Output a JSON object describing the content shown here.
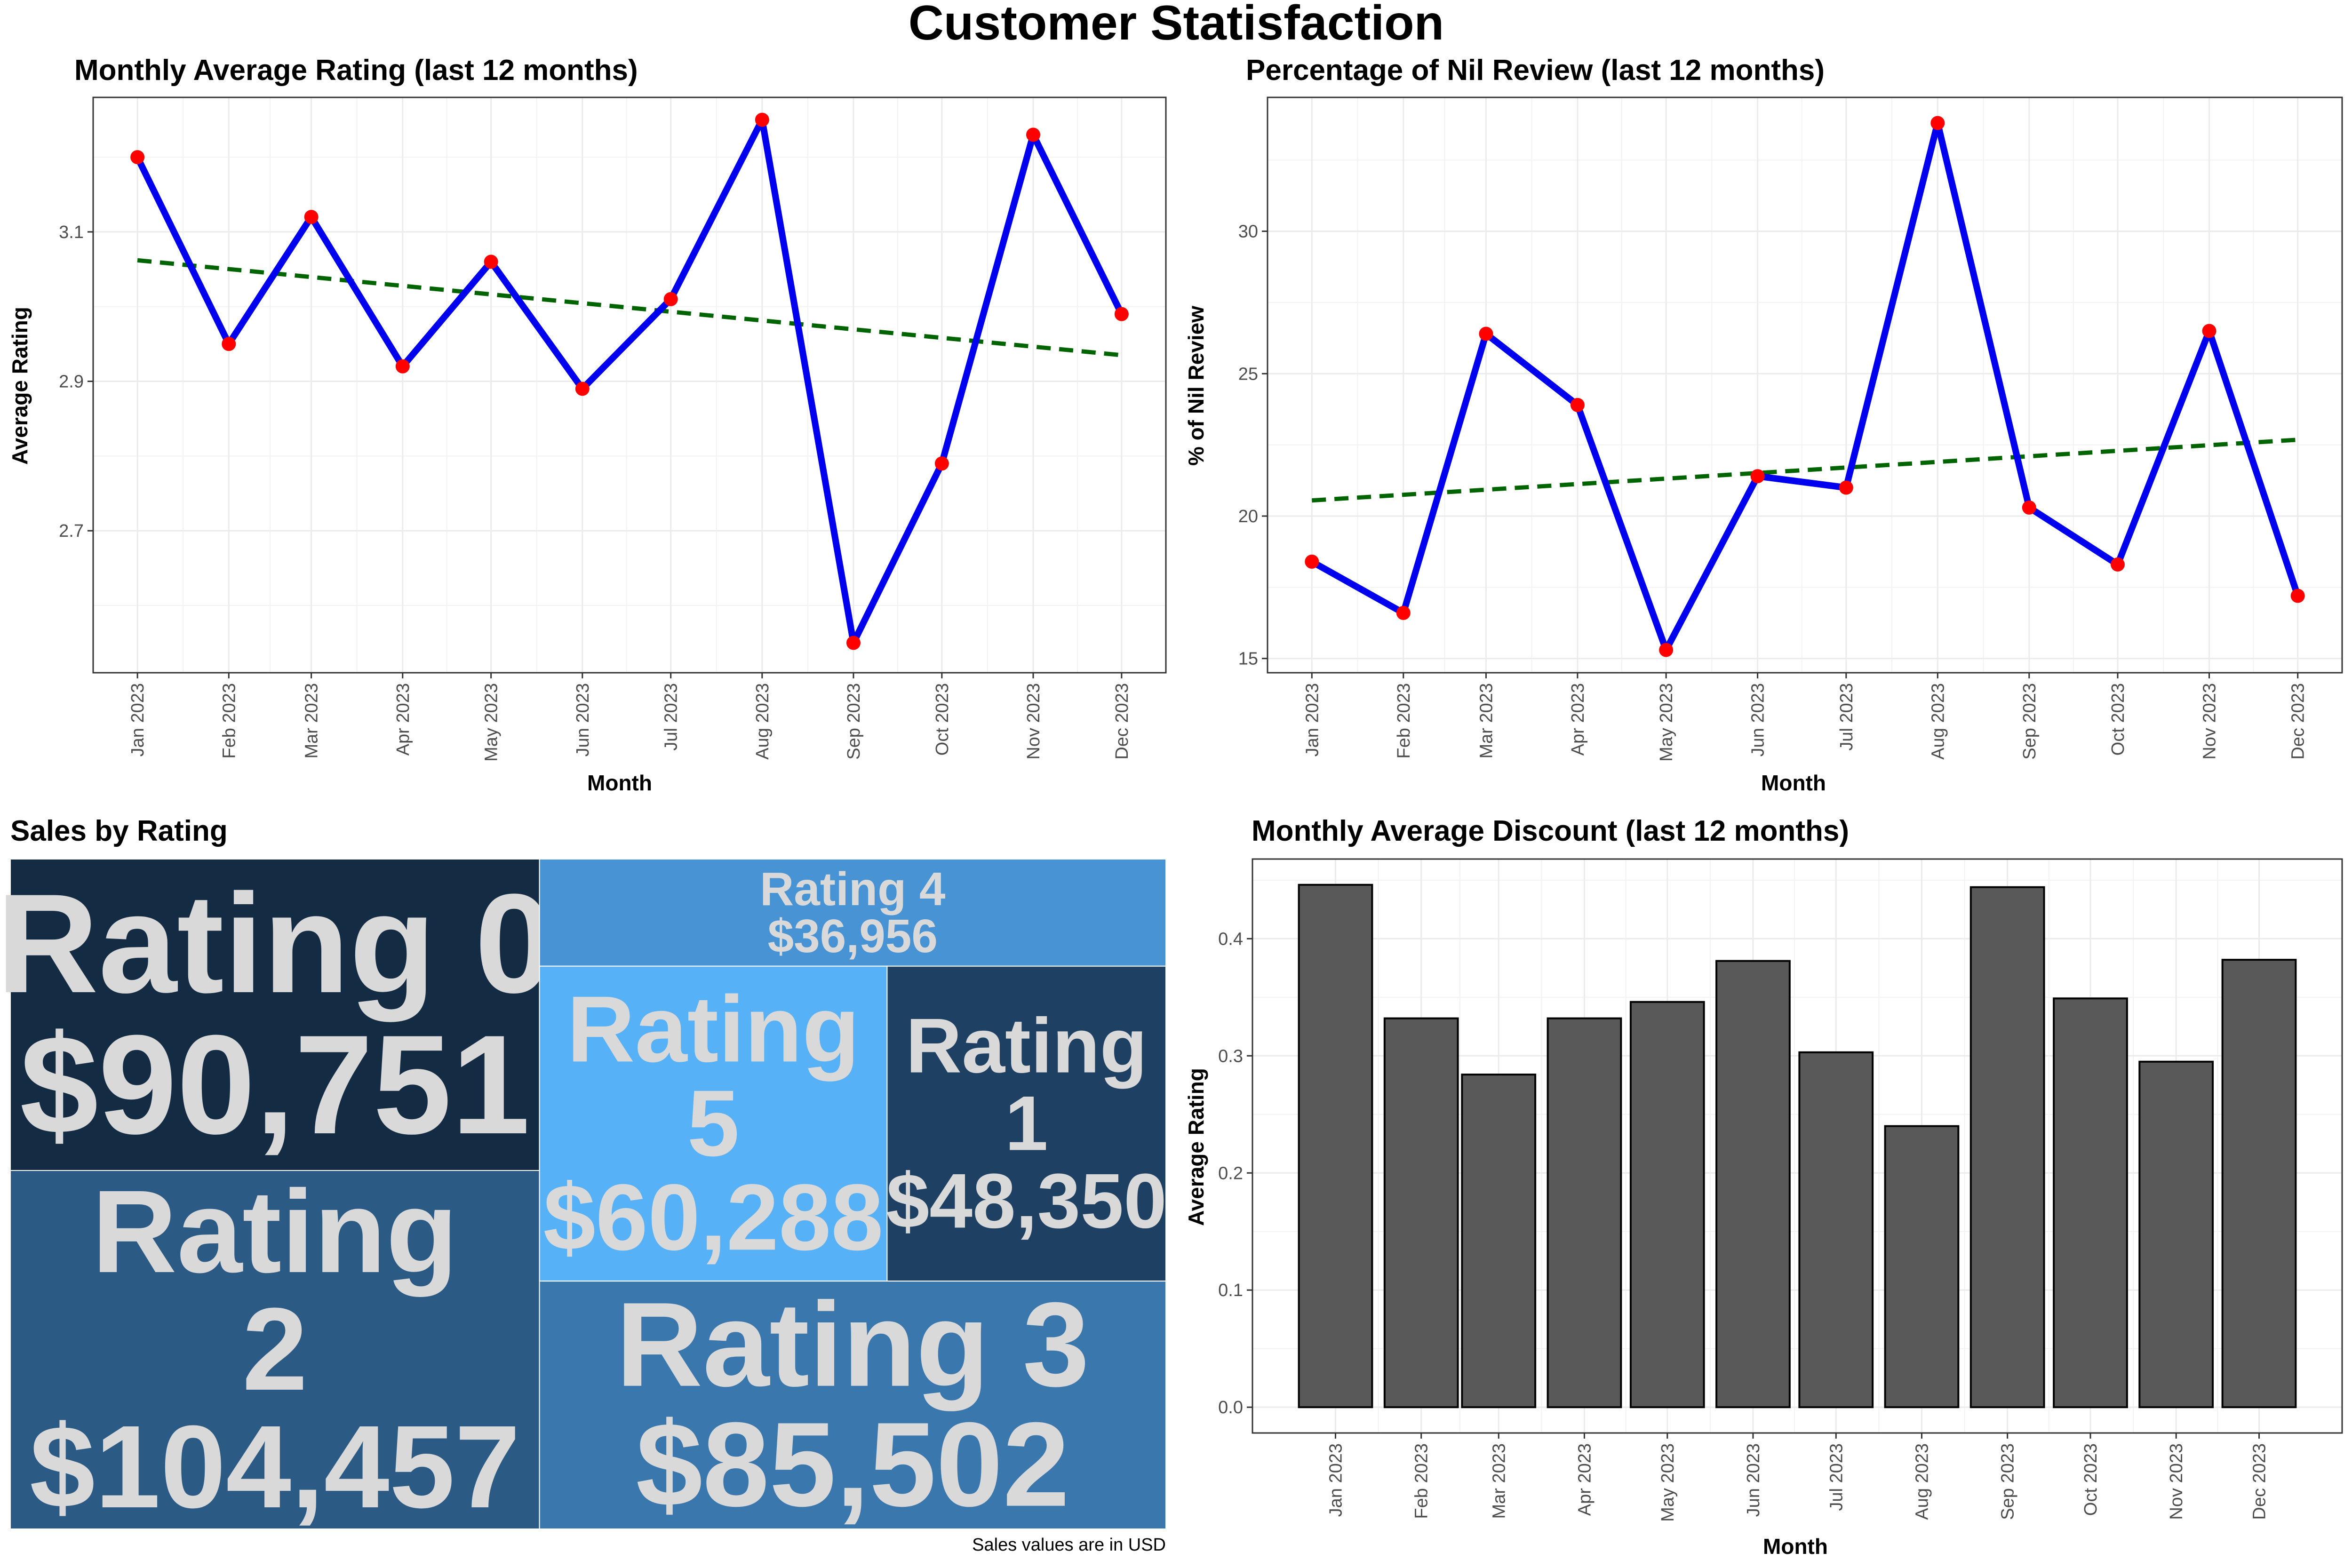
{
  "title": "Customer Statisfaction",
  "colors": {
    "line": "#0000ee",
    "point": "#ff0000",
    "trend": "#006400",
    "bar": "#595959",
    "tree_text": "#d9d9d9"
  },
  "chart_data": [
    {
      "id": "rating",
      "type": "line",
      "title": "Monthly Average Rating (last 12 months)",
      "xlabel": "Month",
      "ylabel": "Average Rating",
      "categories": [
        "Jan 2023",
        "Feb 2023",
        "Mar 2023",
        "Apr 2023",
        "May 2023",
        "Jun 2023",
        "Jul 2023",
        "Aug 2023",
        "Sep 2023",
        "Oct 2023",
        "Nov 2023",
        "Dec 2023"
      ],
      "x_dates": [
        "2023-01-01",
        "2023-02-01",
        "2023-03-01",
        "2023-04-01",
        "2023-05-01",
        "2023-06-01",
        "2023-07-01",
        "2023-08-01",
        "2023-09-01",
        "2023-10-01",
        "2023-11-01",
        "2023-12-01"
      ],
      "values": [
        3.2,
        2.95,
        3.12,
        2.92,
        3.06,
        2.89,
        3.01,
        3.25,
        2.55,
        2.79,
        3.23,
        2.99
      ],
      "trend": [
        3.062,
        2.935
      ],
      "yticks": [
        2.7,
        2.9,
        3.1
      ],
      "ylim": [
        2.51,
        3.28
      ],
      "grid": true
    },
    {
      "id": "nil",
      "type": "line",
      "title": "Percentage of Nil Review (last 12 months)",
      "xlabel": "Month",
      "ylabel": "% of Nil Review",
      "categories": [
        "Jan 2023",
        "Feb 2023",
        "Mar 2023",
        "Apr 2023",
        "May 2023",
        "Jun 2023",
        "Jul 2023",
        "Aug 2023",
        "Sep 2023",
        "Oct 2023",
        "Nov 2023",
        "Dec 2023"
      ],
      "x_dates": [
        "2023-01-01",
        "2023-02-01",
        "2023-03-01",
        "2023-04-01",
        "2023-05-01",
        "2023-06-01",
        "2023-07-01",
        "2023-08-01",
        "2023-09-01",
        "2023-10-01",
        "2023-11-01",
        "2023-12-01"
      ],
      "values": [
        18.4,
        16.6,
        26.4,
        23.9,
        15.3,
        21.4,
        21.0,
        33.8,
        20.3,
        18.3,
        26.5,
        17.2
      ],
      "trend": [
        20.55,
        22.68
      ],
      "yticks": [
        15,
        20,
        25,
        30
      ],
      "ylim": [
        14.5,
        34.7
      ],
      "grid": true
    },
    {
      "id": "treemap",
      "type": "treemap",
      "title": "Sales by Rating",
      "caption": "Sales values are in USD",
      "tiles": [
        {
          "label": "Rating 0",
          "value": 90751,
          "value_label": "$90,751",
          "color": "#132b43"
        },
        {
          "label": "Rating 2",
          "value": 104457,
          "value_label": "$104,457",
          "color": "#2b5a85"
        },
        {
          "label": "Rating 4",
          "value": 36956,
          "value_label": "$36,956",
          "color": "#4793d3"
        },
        {
          "label": "Rating 5",
          "value": 60288,
          "value_label": "$60,288",
          "color": "#56b1f7"
        },
        {
          "label": "Rating 1",
          "value": 48350,
          "value_label": "$48,350",
          "color": "#1e4063"
        },
        {
          "label": "Rating 3",
          "value": 85502,
          "value_label": "$85,502",
          "color": "#3a77ac"
        }
      ]
    },
    {
      "id": "discount",
      "type": "bar",
      "title": "Monthly Average Discount (last 12 months)",
      "xlabel": "Month",
      "ylabel": "Average Rating",
      "categories": [
        "Jan 2023",
        "Feb 2023",
        "Mar 2023",
        "Apr 2023",
        "May 2023",
        "Jun 2023",
        "Jul 2023",
        "Aug 2023",
        "Sep 2023",
        "Oct 2023",
        "Nov 2023",
        "Dec 2023"
      ],
      "x_dates": [
        "2023-01-01",
        "2023-02-01",
        "2023-03-01",
        "2023-04-01",
        "2023-05-01",
        "2023-06-01",
        "2023-07-01",
        "2023-08-01",
        "2023-09-01",
        "2023-10-01",
        "2023-11-01",
        "2023-12-01"
      ],
      "values": [
        0.446,
        0.332,
        0.284,
        0.332,
        0.346,
        0.381,
        0.303,
        0.24,
        0.444,
        0.349,
        0.295,
        0.382
      ],
      "yticks": [
        0.0,
        0.1,
        0.2,
        0.3,
        0.4
      ],
      "ylim": [
        -0.022,
        0.468
      ],
      "grid": true
    }
  ]
}
